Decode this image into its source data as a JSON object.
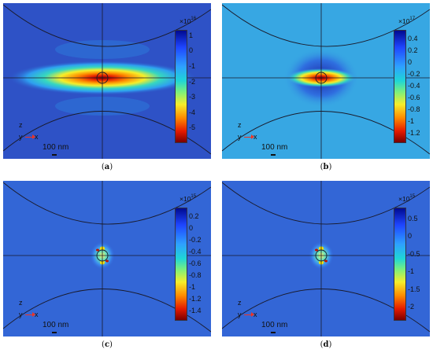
{
  "panels": [
    {
      "id": "a",
      "caption": "(a)",
      "label": "a",
      "background": "#2e52c6",
      "style": "broad",
      "colorbar": {
        "exponent_prefix": "×10",
        "exponent": "16",
        "ticks": [
          "1",
          "0",
          "-1",
          "-2",
          "-3",
          "-4",
          "-5"
        ],
        "tick_values": [
          1,
          0,
          -1,
          -2,
          -3,
          -4,
          -5
        ],
        "range": [
          1.35,
          -5.9
        ]
      },
      "axes": {
        "z": "z",
        "y": "y",
        "x": "x"
      },
      "scalebar": "100 nm"
    },
    {
      "id": "b",
      "caption": "(b)",
      "label": "b",
      "background": "#37a7e3",
      "style": "ring",
      "colorbar": {
        "exponent_prefix": "×10",
        "exponent": "17",
        "ticks": [
          "0.4",
          "0.2",
          "0",
          "-0.2",
          "-0.4",
          "-0.6",
          "-0.8",
          "-1",
          "-1.2"
        ],
        "tick_values": [
          0.4,
          0.2,
          0,
          -0.2,
          -0.4,
          -0.6,
          -0.8,
          -1,
          -1.2
        ],
        "range": [
          0.55,
          -1.35
        ]
      },
      "axes": {
        "z": "z",
        "y": "y",
        "x": "x"
      },
      "scalebar": "100 nm"
    },
    {
      "id": "c",
      "caption": "(c)",
      "label": "c",
      "background": "#3366d6",
      "style": "localized",
      "colorbar": {
        "exponent_prefix": "×10",
        "exponent": "15",
        "ticks": [
          "0.2",
          "0",
          "-0.2",
          "-0.4",
          "-0.6",
          "-0.8",
          "-1",
          "-1.2",
          "-1.4"
        ],
        "tick_values": [
          0.2,
          0,
          -0.2,
          -0.4,
          -0.6,
          -0.8,
          -1,
          -1.2,
          -1.4
        ],
        "range": [
          0.35,
          -1.55
        ]
      },
      "axes": {
        "z": "z",
        "y": "y",
        "x": "x"
      },
      "scalebar": "100 nm"
    },
    {
      "id": "d",
      "caption": "(d)",
      "label": "d",
      "background": "#3366d6",
      "style": "localized",
      "colorbar": {
        "exponent_prefix": "×10",
        "exponent": "15",
        "ticks": [
          "0.5",
          "0",
          "-0.5",
          "-1",
          "-1.5",
          "-2"
        ],
        "tick_values": [
          0.5,
          0,
          -0.5,
          -1,
          -1.5,
          -2
        ],
        "range": [
          0.8,
          -2.35
        ]
      },
      "axes": {
        "z": "z",
        "y": "y",
        "x": "x"
      },
      "scalebar": "100 nm"
    }
  ]
}
